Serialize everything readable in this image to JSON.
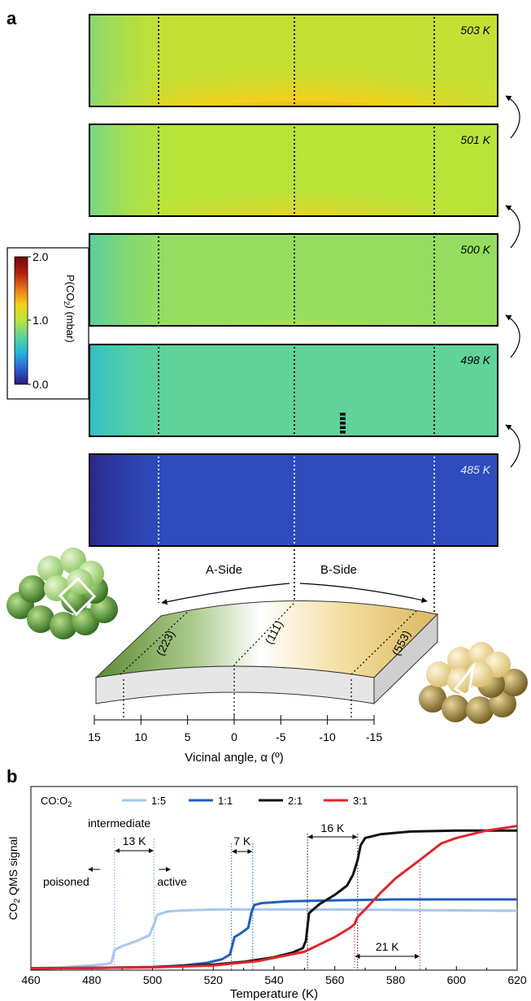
{
  "panel_a": {
    "label": "a",
    "colorbar": {
      "max_label": "2.0",
      "mid_label": "1.0",
      "min_label": "0.0",
      "range": [
        0.0,
        2.0
      ],
      "title_main": "P(CO",
      "title_sub": "2",
      "title_unit": ") (mbar)",
      "colormap": [
        "#2b1a78",
        "#2f5fd9",
        "#22b8d8",
        "#5fd39a",
        "#b8e43a",
        "#f4d11c",
        "#e8741a",
        "#b31d10",
        "#6e0606"
      ]
    },
    "maps": [
      {
        "temperature": "503 K",
        "background": 1.05,
        "peak": 2.0,
        "spread": 1.0
      },
      {
        "temperature": "501 K",
        "background": 1.0,
        "peak": 2.0,
        "spread": 0.85
      },
      {
        "temperature": "500 K",
        "background": 0.9,
        "peak": 1.85,
        "spread": 0.65
      },
      {
        "temperature": "498 K",
        "background": 0.75,
        "peak": 1.3,
        "spread": 0.45
      },
      {
        "temperature": "485 K",
        "background": 0.18,
        "peak": 0.2,
        "spread": 0.0
      }
    ],
    "sides": {
      "a": "A-Side",
      "b": "B-Side"
    },
    "facets": [
      "(223)",
      "(111)",
      "(553)"
    ],
    "axis": {
      "label": "Vicinal angle, α (º)",
      "ticks": [
        "15",
        "10",
        "5",
        "0",
        "-5",
        "-10",
        "-15"
      ]
    }
  },
  "chart_data": {
    "type": "line",
    "panel_label": "b",
    "xlabel": "Temperature (K)",
    "ylabel": "CO",
    "ylabel_sub": "2",
    "ylabel_rest": " QMS signal",
    "xlim": [
      460,
      620
    ],
    "ylim": [
      0,
      1.0
    ],
    "x_ticks": [
      "460",
      "480",
      "500",
      "520",
      "540",
      "560",
      "580",
      "600",
      "620"
    ],
    "legend_title": "CO:O",
    "legend_title_sub": "2",
    "series": [
      {
        "name": "1:5",
        "color": "#a6c6ef",
        "x": [
          460,
          470,
          480,
          485,
          486.5,
          487.5,
          490,
          495,
          499,
          500.5,
          501.5,
          505,
          510,
          520,
          540,
          560,
          580,
          600,
          620
        ],
        "y": [
          0.01,
          0.015,
          0.025,
          0.033,
          0.04,
          0.11,
          0.13,
          0.16,
          0.19,
          0.25,
          0.3,
          0.32,
          0.325,
          0.33,
          0.33,
          0.33,
          0.328,
          0.325,
          0.323
        ]
      },
      {
        "name": "1:1",
        "color": "#1f5fbf",
        "x": [
          460,
          480,
          500,
          510,
          518,
          523,
          525.5,
          527,
          529,
          531.5,
          532.5,
          533.5,
          536,
          545,
          560,
          580,
          600,
          620
        ],
        "y": [
          0.01,
          0.012,
          0.017,
          0.025,
          0.04,
          0.06,
          0.085,
          0.18,
          0.2,
          0.23,
          0.31,
          0.355,
          0.365,
          0.375,
          0.38,
          0.385,
          0.385,
          0.385
        ]
      },
      {
        "name": "2:1",
        "color": "#111111",
        "x": [
          460,
          480,
          500,
          520,
          530,
          540,
          546,
          549.5,
          550.5,
          551.5,
          555,
          560,
          564,
          566,
          567.5,
          568.5,
          570,
          575,
          585,
          600,
          620
        ],
        "y": [
          0.01,
          0.012,
          0.017,
          0.03,
          0.045,
          0.07,
          0.095,
          0.12,
          0.16,
          0.31,
          0.36,
          0.41,
          0.46,
          0.52,
          0.6,
          0.68,
          0.72,
          0.74,
          0.755,
          0.76,
          0.76
        ]
      },
      {
        "name": "3:1",
        "color": "#e0262b",
        "x": [
          460,
          480,
          500,
          520,
          535,
          550,
          560,
          565,
          566.5,
          567.5,
          570,
          575,
          580,
          588,
          595,
          600,
          610,
          620
        ],
        "y": [
          0.01,
          0.012,
          0.015,
          0.025,
          0.05,
          0.1,
          0.18,
          0.23,
          0.25,
          0.29,
          0.33,
          0.42,
          0.5,
          0.6,
          0.69,
          0.72,
          0.76,
          0.785
        ]
      }
    ],
    "annotations": [
      {
        "text": "intermediate",
        "x": 488
      },
      {
        "text": "13 K",
        "x1": 487.5,
        "x2": 500.5,
        "color": "#6e9fe0"
      },
      {
        "text": "poisoned",
        "direction": "left",
        "x": 487.5
      },
      {
        "text": "active",
        "direction": "right",
        "x": 500.5
      },
      {
        "text": "7 K",
        "x1": 526,
        "x2": 533,
        "color": "#1f5fbf"
      },
      {
        "text": "16 K",
        "x1": 551,
        "x2": 567.5,
        "color": "#111111"
      },
      {
        "text": "21 K",
        "x1": 566.5,
        "x2": 588,
        "color": "#e0262b"
      }
    ]
  }
}
